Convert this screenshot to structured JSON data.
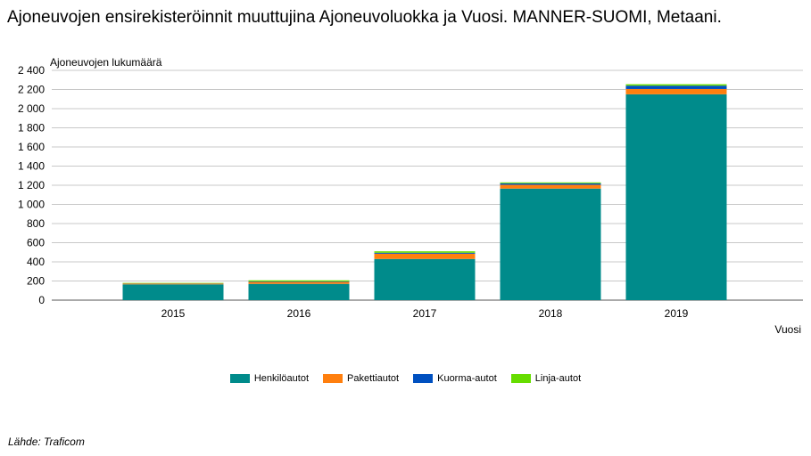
{
  "title": "Ajoneuvojen ensirekisteröinnit muuttujina Ajoneuvoluokka ja Vuosi. MANNER-SUOMI, Metaani.",
  "source": "Lähde: Traficom",
  "chart_data": {
    "type": "bar",
    "stacked": true,
    "title": "Ajoneuvojen ensirekisteröinnit muuttujina Ajoneuvoluokka ja Vuosi. MANNER-SUOMI, Metaani.",
    "xlabel": "Vuosi",
    "ylabel": "Ajoneuvojen lukumäärä",
    "categories": [
      "2015",
      "2016",
      "2017",
      "2018",
      "2019"
    ],
    "ylim": [
      0,
      2400
    ],
    "yticks": [
      0,
      200,
      400,
      600,
      800,
      1000,
      1200,
      1400,
      1600,
      1800,
      2000,
      2200,
      2400
    ],
    "ytick_labels": [
      "0",
      "200",
      "400",
      "600",
      "800",
      "1 000",
      "1 200",
      "1 400",
      "1 600",
      "1 800",
      "2 000",
      "2 200",
      "2 400"
    ],
    "grid": true,
    "legend_position": "bottom",
    "series": [
      {
        "name": "Henkilöautot",
        "color": "#008b8b",
        "values": [
          165,
          170,
          430,
          1165,
          2150
        ]
      },
      {
        "name": "Pakettiautot",
        "color": "#ff7f0e",
        "values": [
          8,
          20,
          55,
          40,
          55
        ]
      },
      {
        "name": "Kuorma-autot",
        "color": "#0050c0",
        "values": [
          2,
          5,
          10,
          15,
          35
        ]
      },
      {
        "name": "Linja-autot",
        "color": "#66dd00",
        "values": [
          5,
          12,
          15,
          10,
          15
        ]
      }
    ]
  }
}
